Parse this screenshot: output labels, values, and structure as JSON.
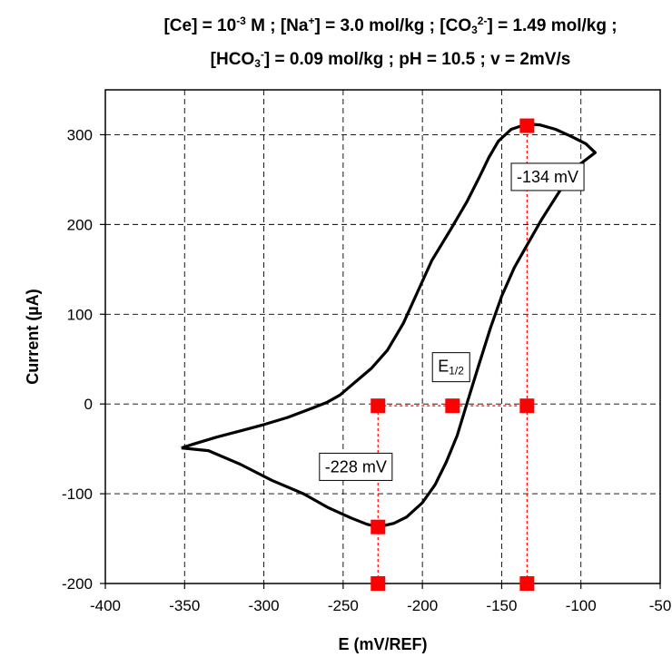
{
  "chart_data": {
    "type": "line",
    "title_lines": [
      [
        {
          "t": "[Ce] = 10"
        },
        {
          "t": "-3",
          "sup": true
        },
        {
          "t": " M ; [Na"
        },
        {
          "t": "+",
          "sup": true
        },
        {
          "t": "] = 3.0 mol/kg ; [CO"
        },
        {
          "t": "3",
          "sub": true
        },
        {
          "t": "2-",
          "sup": true
        },
        {
          "t": "] = 1.49 mol/kg ;"
        }
      ],
      [
        {
          "t": "[HCO"
        },
        {
          "t": "3",
          "sub": true
        },
        {
          "t": "-",
          "sup": true
        },
        {
          "t": "] = 0.09 mol/kg ; pH = 10.5 ; v = 2mV/s"
        }
      ]
    ],
    "xlabel": "E (mV/REF)",
    "ylabel": "Current (µA)",
    "xlim": [
      -400,
      -50
    ],
    "ylim": [
      -200,
      350
    ],
    "xticks": [
      -400,
      -350,
      -300,
      -250,
      -200,
      -150,
      -100,
      -50
    ],
    "yticks": [
      -200,
      -100,
      0,
      100,
      200,
      300
    ],
    "grid": true,
    "colors": {
      "curve": "#000000",
      "marker": "#ff0000",
      "guide": "#ff0000",
      "grid": "#000000"
    },
    "series": [
      {
        "points": [
          [
            -352,
            -49
          ],
          [
            -335,
            -52
          ],
          [
            -315,
            -67
          ],
          [
            -295,
            -85
          ],
          [
            -275,
            -100
          ],
          [
            -260,
            -115
          ],
          [
            -245,
            -127
          ],
          [
            -235,
            -134
          ],
          [
            -228,
            -137
          ],
          [
            -218,
            -133
          ],
          [
            -210,
            -126
          ],
          [
            -200,
            -110
          ],
          [
            -192,
            -90
          ],
          [
            -185,
            -65
          ],
          [
            -178,
            -35
          ],
          [
            -172,
            0
          ],
          [
            -165,
            40
          ],
          [
            -157,
            85
          ],
          [
            -150,
            120
          ],
          [
            -142,
            152
          ],
          [
            -133,
            180
          ],
          [
            -125,
            205
          ],
          [
            -116,
            230
          ],
          [
            -108,
            252
          ],
          [
            -100,
            268
          ],
          [
            -91,
            280
          ],
          [
            -97,
            290
          ],
          [
            -106,
            298
          ],
          [
            -116,
            306
          ],
          [
            -126,
            311
          ],
          [
            -134,
            312
          ],
          [
            -144,
            306
          ],
          [
            -152,
            293
          ],
          [
            -158,
            275
          ],
          [
            -164,
            253
          ],
          [
            -172,
            225
          ],
          [
            -182,
            195
          ],
          [
            -194,
            160
          ],
          [
            -203,
            125
          ],
          [
            -212,
            90
          ],
          [
            -222,
            60
          ],
          [
            -232,
            40
          ],
          [
            -242,
            25
          ],
          [
            -252,
            10
          ],
          [
            -260,
            2
          ],
          [
            -270,
            -5
          ],
          [
            -285,
            -15
          ],
          [
            -300,
            -23
          ],
          [
            -315,
            -30
          ],
          [
            -330,
            -37
          ],
          [
            -345,
            -45
          ],
          [
            -352,
            -49
          ]
        ]
      }
    ],
    "markers": [
      [
        -134,
        310
      ],
      [
        -228,
        -2
      ],
      [
        -181,
        -2
      ],
      [
        -134,
        -2
      ],
      [
        -228,
        -137
      ],
      [
        -228,
        -200
      ],
      [
        -134,
        -200
      ]
    ],
    "guides": {
      "horizontal": {
        "y": -2,
        "from": -228,
        "to": -134
      },
      "vertical": [
        {
          "x": -228,
          "from": -200,
          "to": -2
        },
        {
          "x": -134,
          "from": -200,
          "to": 310
        }
      ]
    },
    "annotations": [
      {
        "text": "-134 mV",
        "x": -121,
        "y": 253
      },
      {
        "text": "-228 mV",
        "x": -242,
        "y": -70
      }
    ],
    "e_half": {
      "base": "E",
      "sub": "1/2",
      "x": -182,
      "y": 42
    }
  }
}
